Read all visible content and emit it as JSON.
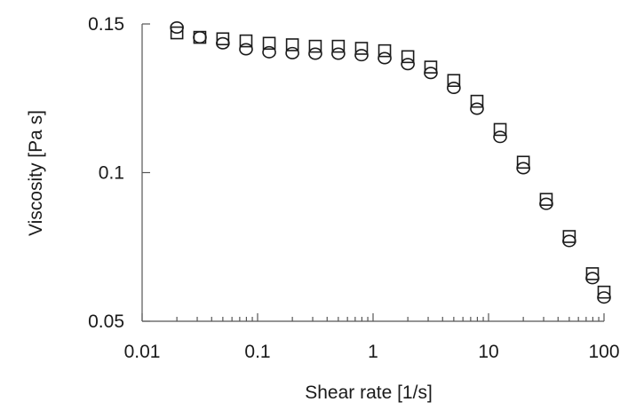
{
  "chart_data": {
    "type": "scatter",
    "title": "",
    "xlabel": "Shear rate [1/s]",
    "ylabel": "Viscosity [Pa s]",
    "x_scale": "log",
    "xlim": [
      0.01,
      100
    ],
    "ylim": [
      0.05,
      0.15
    ],
    "x_ticks": [
      0.01,
      0.1,
      1,
      10,
      100
    ],
    "x_tick_labels": [
      "0.01",
      "0.1",
      "1",
      "10",
      "100"
    ],
    "y_ticks": [
      0.05,
      0.1,
      0.15
    ],
    "y_tick_labels": [
      "0.05",
      "0.1",
      "0.15"
    ],
    "grid": false,
    "legend": "none",
    "series": [
      {
        "marker": "square",
        "x": [
          0.02,
          0.0316,
          0.05,
          0.0794,
          0.126,
          0.2,
          0.316,
          0.5,
          0.794,
          1.26,
          2,
          3.16,
          5,
          7.94,
          12.6,
          20,
          31.6,
          50,
          79.4,
          100
        ],
        "y": [
          0.147,
          0.1455,
          0.145,
          0.1443,
          0.1435,
          0.143,
          0.1425,
          0.1425,
          0.1418,
          0.141,
          0.139,
          0.1355,
          0.131,
          0.124,
          0.1145,
          0.1035,
          0.091,
          0.0785,
          0.066,
          0.0598
        ]
      },
      {
        "marker": "circle",
        "x": [
          0.02,
          0.0316,
          0.05,
          0.0794,
          0.126,
          0.2,
          0.316,
          0.5,
          0.794,
          1.26,
          2,
          3.16,
          5,
          7.94,
          12.6,
          20,
          31.6,
          50,
          79.4,
          100
        ],
        "y": [
          0.1488,
          0.1455,
          0.1435,
          0.1415,
          0.1405,
          0.1402,
          0.14,
          0.14,
          0.1395,
          0.1385,
          0.1365,
          0.1335,
          0.1285,
          0.1215,
          0.112,
          0.1015,
          0.0895,
          0.077,
          0.0645,
          0.058
        ]
      }
    ]
  }
}
